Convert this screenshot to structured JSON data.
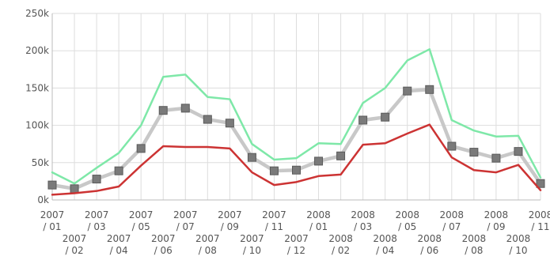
{
  "chart_data": {
    "type": "line",
    "x": [
      "2007 / 01",
      "2007 / 02",
      "2007 / 03",
      "2007 / 04",
      "2007 / 05",
      "2007 / 06",
      "2007 / 07",
      "2007 / 08",
      "2007 / 09",
      "2007 / 10",
      "2007 / 11",
      "2007 / 12",
      "2008 / 01",
      "2008 / 02",
      "2008 / 03",
      "2008 / 04",
      "2008 / 05",
      "2008 / 06",
      "2008 / 07",
      "2008 / 08",
      "2008 / 09",
      "2008 / 10",
      "2008 / 11"
    ],
    "x_ticks": [
      {
        "year": "2007",
        "month": "/ 01",
        "row": 1
      },
      {
        "year": "2007",
        "month": "/ 02",
        "row": 2
      },
      {
        "year": "2007",
        "month": "/ 03",
        "row": 1
      },
      {
        "year": "2007",
        "month": "/ 04",
        "row": 2
      },
      {
        "year": "2007",
        "month": "/ 05",
        "row": 1
      },
      {
        "year": "2007",
        "month": "/ 06",
        "row": 2
      },
      {
        "year": "2007",
        "month": "/ 07",
        "row": 1
      },
      {
        "year": "2007",
        "month": "/ 08",
        "row": 2
      },
      {
        "year": "2007",
        "month": "/ 09",
        "row": 1
      },
      {
        "year": "2007",
        "month": "/ 10",
        "row": 2
      },
      {
        "year": "2007",
        "month": "/ 11",
        "row": 1
      },
      {
        "year": "2007",
        "month": "/ 12",
        "row": 2
      },
      {
        "year": "2008",
        "month": "/ 01",
        "row": 1
      },
      {
        "year": "2008",
        "month": "/ 02",
        "row": 2
      },
      {
        "year": "2008",
        "month": "/ 03",
        "row": 1
      },
      {
        "year": "2008",
        "month": "/ 04",
        "row": 2
      },
      {
        "year": "2008",
        "month": "/ 05",
        "row": 1
      },
      {
        "year": "2008",
        "month": "/ 06",
        "row": 2
      },
      {
        "year": "2008",
        "month": "/ 07",
        "row": 1
      },
      {
        "year": "2008",
        "month": "/ 08",
        "row": 2
      },
      {
        "year": "2008",
        "month": "/ 09",
        "row": 1
      },
      {
        "year": "2008",
        "month": "/ 10",
        "row": 2
      },
      {
        "year": "2008",
        "month": "/ 11",
        "row": 1
      }
    ],
    "y_ticks": [
      "0k",
      "50k",
      "100k",
      "150k",
      "200k",
      "250k"
    ],
    "y_tick_values": [
      0,
      50000,
      100000,
      150000,
      200000,
      250000
    ],
    "ylim": [
      0,
      250000
    ],
    "grid": true,
    "series": [
      {
        "color": "#7ee8a8",
        "style": "line",
        "values": [
          37000,
          22000,
          43000,
          63000,
          100000,
          165000,
          168000,
          138000,
          135000,
          75000,
          54000,
          56000,
          76000,
          75000,
          130000,
          150000,
          187000,
          202000,
          107000,
          93000,
          85000,
          86000,
          30000
        ]
      },
      {
        "color": "#c8c8c8",
        "marker_color": "#7a7a7a",
        "style": "line-with-square-markers",
        "values": [
          20000,
          15000,
          28000,
          39000,
          69000,
          120000,
          123000,
          108000,
          103000,
          57000,
          39000,
          40000,
          52000,
          59000,
          107000,
          111000,
          146000,
          148000,
          72000,
          64000,
          56000,
          65000,
          22000
        ]
      },
      {
        "color": "#cc3333",
        "style": "line",
        "values": [
          7000,
          9000,
          12000,
          18000,
          46000,
          72000,
          71000,
          71000,
          69000,
          37000,
          20000,
          24000,
          32000,
          34000,
          74000,
          76000,
          89000,
          101000,
          57000,
          40000,
          37000,
          47000,
          13000
        ]
      }
    ]
  }
}
